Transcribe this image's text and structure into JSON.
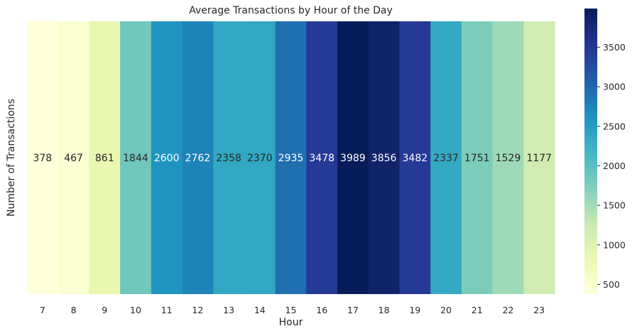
{
  "chart_data": {
    "type": "heatmap",
    "title": "Average Transactions by Hour of the Day",
    "xlabel": "Hour",
    "ylabel": "Number of Transactions",
    "categories": [
      "7",
      "8",
      "9",
      "10",
      "11",
      "12",
      "13",
      "14",
      "15",
      "16",
      "17",
      "18",
      "19",
      "20",
      "21",
      "22",
      "23"
    ],
    "values": [
      378,
      467,
      861,
      1844,
      2600,
      2762,
      2358,
      2370,
      2935,
      3478,
      3989,
      3856,
      3482,
      2337,
      1751,
      1529,
      1177
    ],
    "colormap": "YlGnBu",
    "colorbar": {
      "range": [
        378,
        3989
      ],
      "ticks": [
        500,
        1000,
        1500,
        2000,
        2500,
        3000,
        3500
      ]
    },
    "annotations": true
  }
}
